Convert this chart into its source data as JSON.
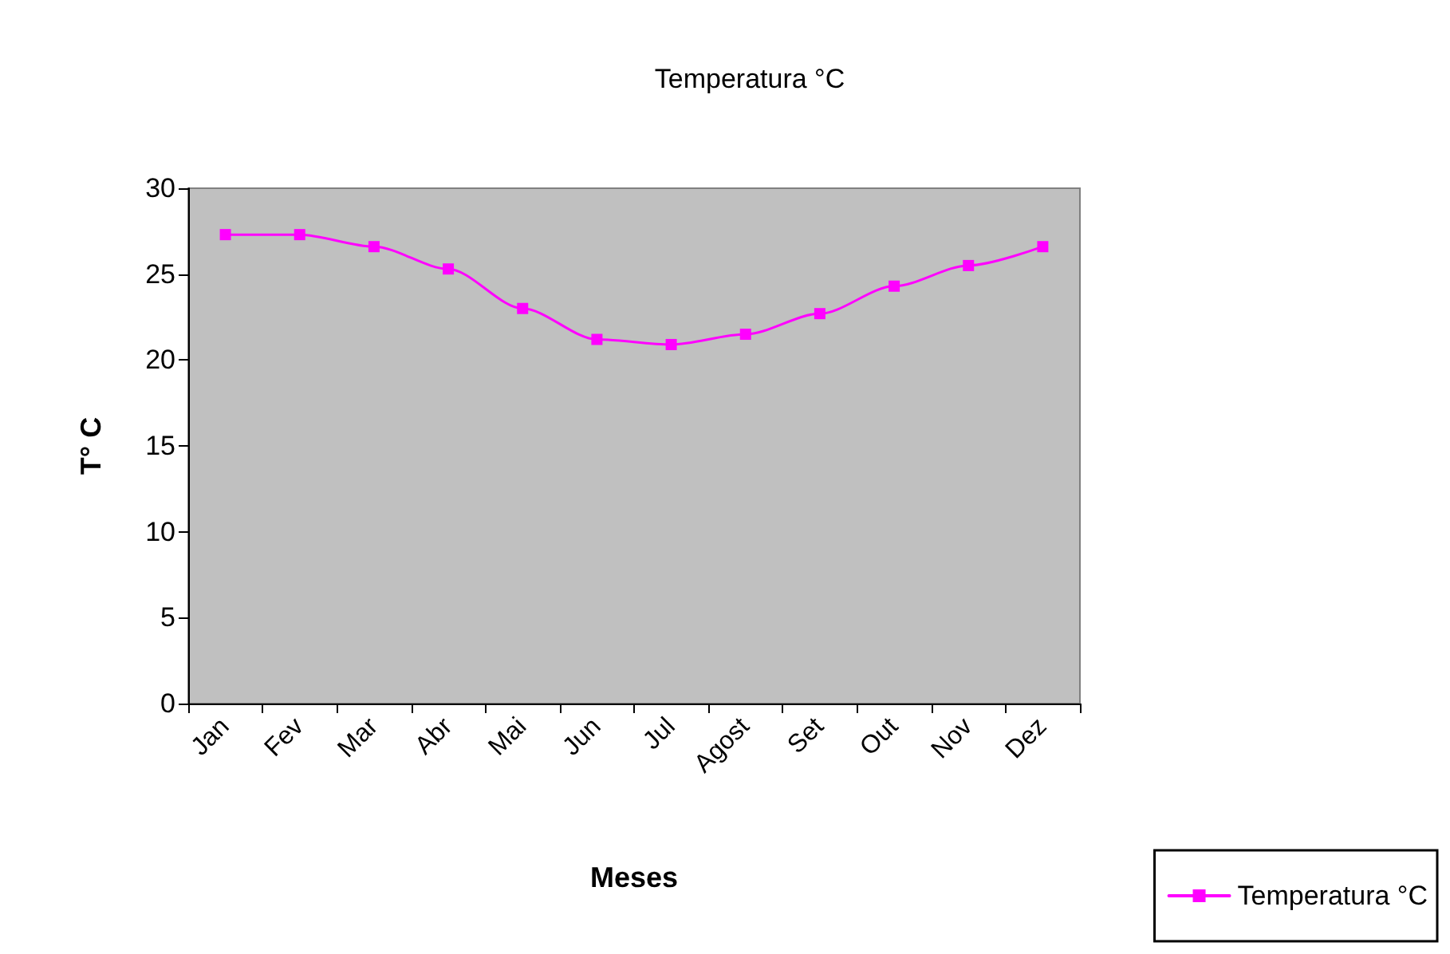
{
  "chart_data": {
    "type": "line",
    "title": "Temperatura °C",
    "xlabel": "Meses",
    "ylabel": "T° C",
    "categories": [
      "Jan",
      "Fev",
      "Mar",
      "Abr",
      "Mai",
      "Jun",
      "Jul",
      "Agost",
      "Set",
      "Out",
      "Nov",
      "Dez"
    ],
    "series": [
      {
        "name": "Temperatura °C",
        "color": "#ff00ff",
        "values": [
          27.3,
          27.3,
          26.6,
          25.3,
          23.0,
          21.2,
          20.9,
          21.5,
          22.7,
          24.3,
          25.5,
          26.6
        ]
      }
    ],
    "ylim": [
      0,
      30
    ],
    "yticks": [
      0,
      5,
      10,
      15,
      20,
      25,
      30
    ],
    "grid": false,
    "legend": "bottom right",
    "marker": "square",
    "line_style": "solid"
  }
}
